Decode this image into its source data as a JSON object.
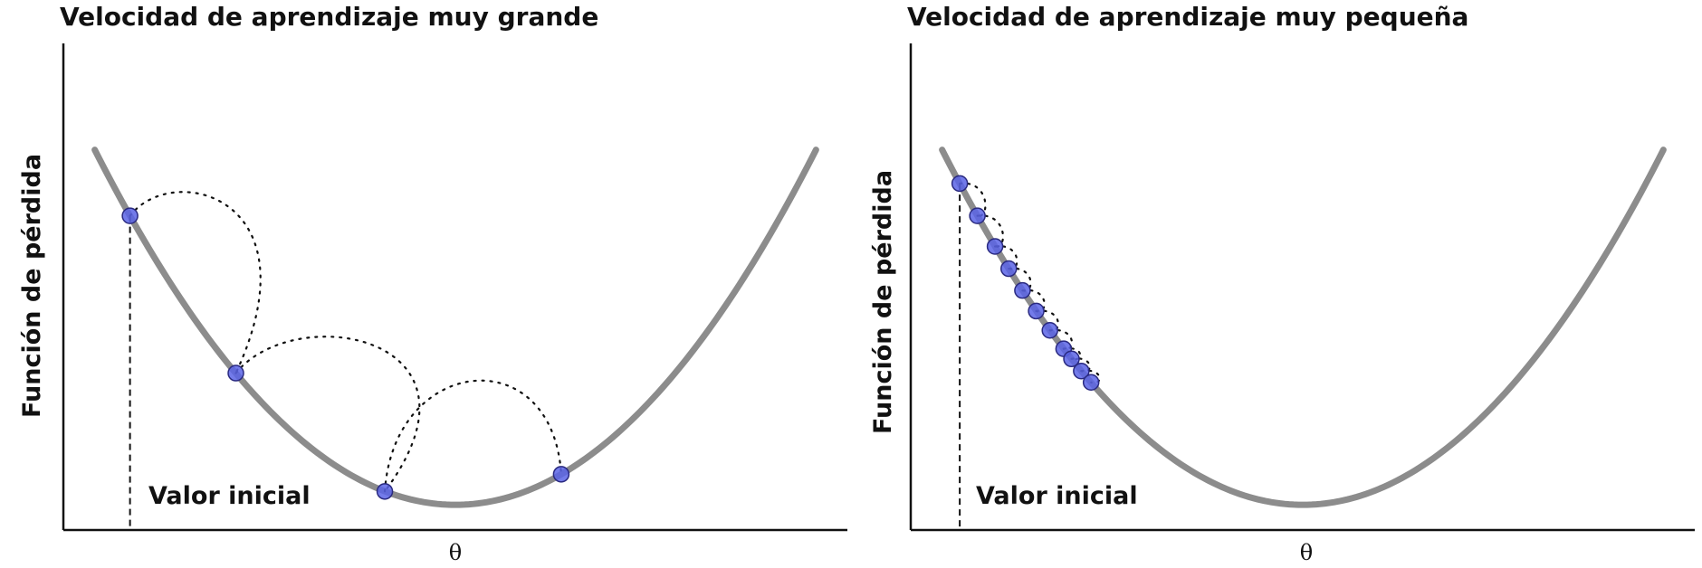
{
  "chart_data": [
    {
      "type": "line",
      "title": "Velocidad de aprendizaje muy grande",
      "xlabel": "θ",
      "ylabel": "Función de pérdida",
      "annotation": "Valor inicial",
      "xlim": [
        -1.0,
        1.0
      ],
      "ylim": [
        -0.06,
        1.1
      ],
      "grid": false,
      "colors": {
        "curve": "#8c8c8c",
        "point": "#5a64e6",
        "point_edge": "#2a2a80",
        "axis": "#111111"
      },
      "curve": {
        "formula": "theta^2",
        "x_range": [
          -0.92,
          0.92
        ]
      },
      "initial_value": -0.83,
      "points": [
        {
          "x": -0.83,
          "y": 0.689
        },
        {
          "x": -0.56,
          "y": 0.314
        },
        {
          "x": -0.18,
          "y": 0.032
        },
        {
          "x": 0.27,
          "y": 0.073
        }
      ]
    },
    {
      "type": "line",
      "title": "Velocidad de aprendizaje muy pequeña",
      "xlabel": "θ",
      "ylabel": "Función de pérdida",
      "annotation": "Valor inicial",
      "xlim": [
        -1.0,
        1.0
      ],
      "ylim": [
        -0.06,
        1.1
      ],
      "grid": false,
      "colors": {
        "curve": "#8c8c8c",
        "point": "#5a64e6",
        "point_edge": "#2a2a80",
        "axis": "#111111"
      },
      "curve": {
        "formula": "theta^2",
        "x_range": [
          -0.92,
          0.92
        ]
      },
      "initial_value": -0.875,
      "points": [
        {
          "x": -0.875,
          "y": 0.766
        },
        {
          "x": -0.83,
          "y": 0.689
        },
        {
          "x": -0.785,
          "y": 0.616
        },
        {
          "x": -0.75,
          "y": 0.563
        },
        {
          "x": -0.715,
          "y": 0.511
        },
        {
          "x": -0.68,
          "y": 0.462
        },
        {
          "x": -0.645,
          "y": 0.416
        },
        {
          "x": -0.61,
          "y": 0.372
        },
        {
          "x": -0.59,
          "y": 0.348
        },
        {
          "x": -0.565,
          "y": 0.319
        },
        {
          "x": -0.54,
          "y": 0.292
        }
      ]
    }
  ]
}
